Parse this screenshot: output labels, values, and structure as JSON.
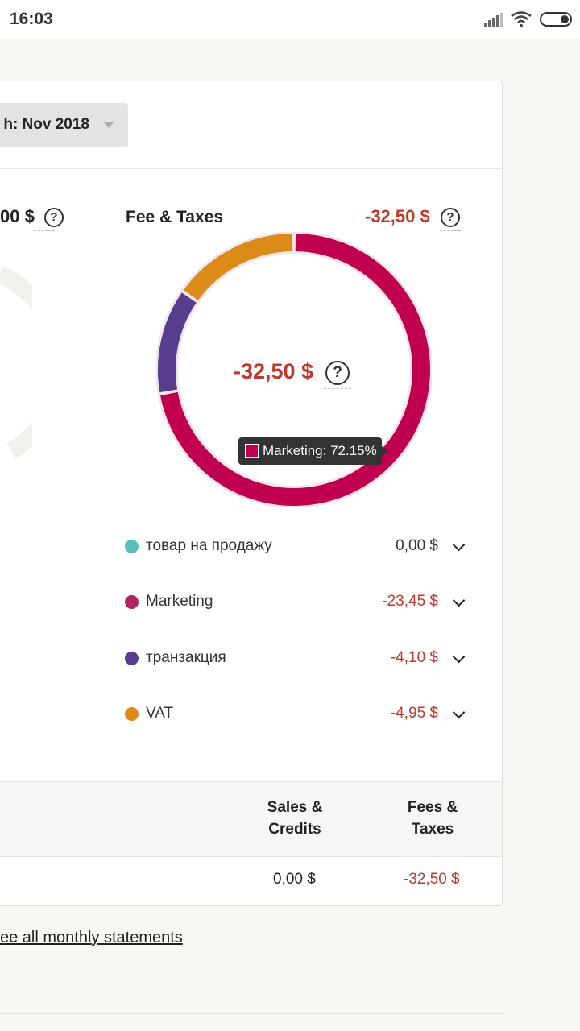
{
  "status_bar": {
    "time": "16:03",
    "icons": [
      "signal-icon",
      "wifi-icon",
      "battery-icon"
    ]
  },
  "header": {
    "month_select": {
      "value": "h: Nov 2018"
    }
  },
  "left_panel": {
    "total": "00 $"
  },
  "fee_panel": {
    "title": "Fee & Taxes",
    "total": "-32,50 $",
    "center_value": "-32,50 $",
    "tooltip": "Marketing: 72.15%"
  },
  "chart_data": {
    "type": "pie",
    "donut": true,
    "categories": [
      "товар на продажу",
      "Marketing",
      "транзакция",
      "VAT"
    ],
    "values": [
      0.0,
      -23.45,
      -4.1,
      -4.95
    ],
    "shares_percent": [
      0,
      72.15,
      12.62,
      15.23
    ],
    "colors": [
      "#5bbfb5",
      "#c0004e",
      "#563d8e",
      "#dc8a18"
    ]
  },
  "legend": [
    {
      "label": "товар на продажу",
      "value": "0,00 $",
      "color": "#5bbfb5",
      "value_color": "#333333"
    },
    {
      "label": "Marketing",
      "value": "-23,45 $",
      "color": "#b0245f",
      "value_color": "#c0392b"
    },
    {
      "label": "транзакция",
      "value": "-4,10 $",
      "color": "#563d8e",
      "value_color": "#c0392b"
    },
    {
      "label": "VAT",
      "value": "-4,95 $",
      "color": "#dc8a18",
      "value_color": "#c0392b"
    }
  ],
  "table": {
    "headers": {
      "sales_1": "Sales &",
      "sales_2": "Credits",
      "fees_1": "Fees &",
      "fees_2": "Taxes"
    },
    "row": {
      "sales": "0,00 $",
      "fees": "-32,50 $"
    }
  },
  "links": {
    "see_all": "ee all monthly statements"
  },
  "help_symbol": "?"
}
